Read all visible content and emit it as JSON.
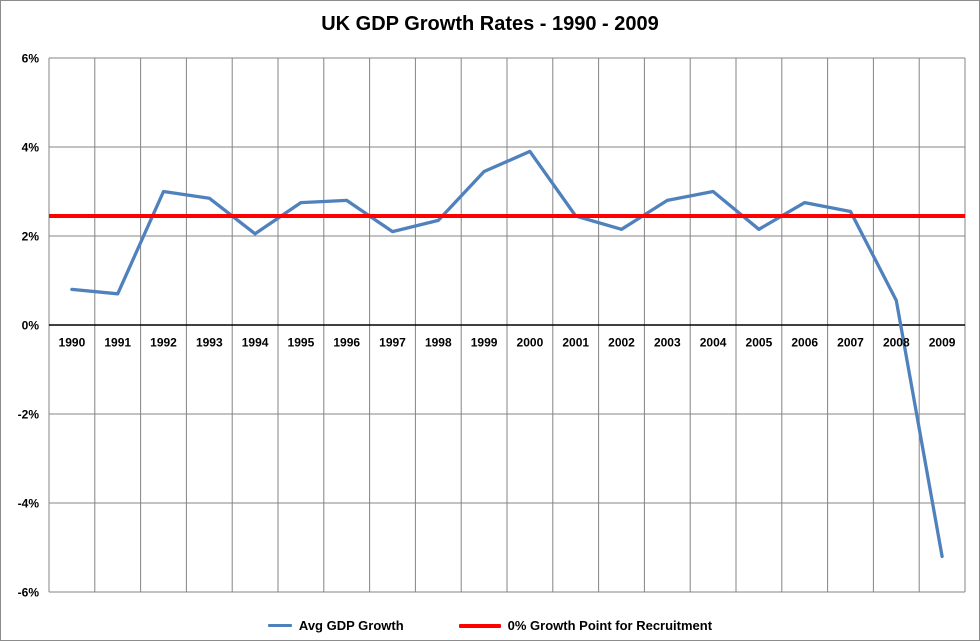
{
  "chart_data": {
    "type": "line",
    "title": "UK GDP Growth Rates - 1990 - 2009",
    "categories": [
      "1990",
      "1991",
      "1992",
      "1993",
      "1994",
      "1995",
      "1996",
      "1997",
      "1998",
      "1999",
      "2000",
      "2001",
      "2002",
      "2003",
      "2004",
      "2005",
      "2006",
      "2007",
      "2008",
      "2009"
    ],
    "series": [
      {
        "name": "Avg GDP Growth",
        "color": "#4F81BD",
        "values": [
          0.8,
          0.7,
          3.0,
          2.85,
          2.05,
          2.75,
          2.8,
          2.1,
          2.35,
          3.45,
          3.9,
          2.45,
          2.15,
          2.8,
          3.0,
          2.15,
          2.75,
          2.55,
          0.55,
          -5.2
        ]
      },
      {
        "name": "0% Growth Point for Recruitment",
        "color": "#FF0000",
        "constant": 2.45
      }
    ],
    "xlabel": "",
    "ylabel": "",
    "ylim": [
      -6,
      6
    ],
    "ytick_values": [
      6,
      4,
      2,
      0,
      -2,
      -4,
      -6
    ],
    "ytick_labels": [
      "6%",
      "4%",
      "2%",
      "0%",
      "-2%",
      "-4%",
      "-6%"
    ],
    "grid": true,
    "legend_position": "bottom",
    "gridline_color": "#848484",
    "zero_axis_color": "#000000",
    "background_color": "#FFFFFF",
    "border_color": "#8C8C8C"
  }
}
